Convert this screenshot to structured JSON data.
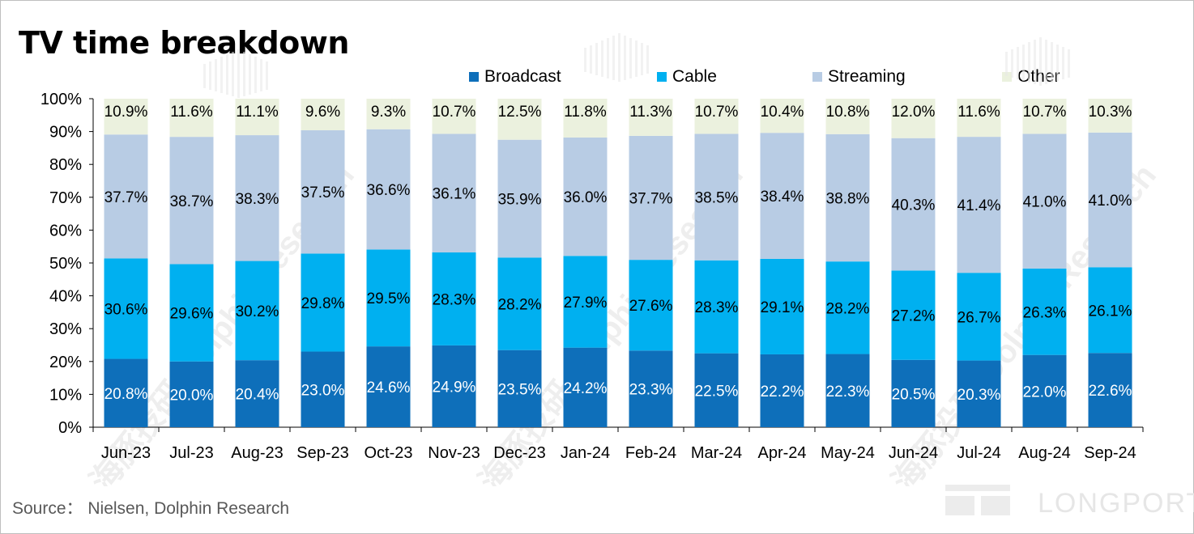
{
  "title": "TV time breakdown",
  "source": "Source：  Nielsen,  Dolphin Research",
  "watermark": {
    "brand": "LONGPORT",
    "text": "海豚投研 DolphinResearch"
  },
  "colors": {
    "Broadcast": "#0e6fba",
    "Cable": "#00b0f0",
    "Streaming": "#b8cce4",
    "Other": "#ebf1de",
    "axis": "#000000",
    "watermark": "#e8e8e8"
  },
  "chart_data": {
    "type": "bar",
    "stacked": true,
    "percent": true,
    "categories": [
      "Jun-23",
      "Jul-23",
      "Aug-23",
      "Sep-23",
      "Oct-23",
      "Nov-23",
      "Dec-23",
      "Jan-24",
      "Feb-24",
      "Mar-24",
      "Apr-24",
      "May-24",
      "Jun-24",
      "Jul-24",
      "Aug-24",
      "Sep-24"
    ],
    "series": [
      {
        "name": "Broadcast",
        "values": [
          20.8,
          20.0,
          20.4,
          23.0,
          24.6,
          24.9,
          23.5,
          24.2,
          23.3,
          22.5,
          22.2,
          22.3,
          20.5,
          20.3,
          22.0,
          22.6
        ]
      },
      {
        "name": "Cable",
        "values": [
          30.6,
          29.6,
          30.2,
          29.8,
          29.5,
          28.3,
          28.2,
          27.9,
          27.6,
          28.3,
          29.1,
          28.2,
          27.2,
          26.7,
          26.3,
          26.1
        ]
      },
      {
        "name": "Streaming",
        "values": [
          37.7,
          38.7,
          38.3,
          37.5,
          36.6,
          36.1,
          35.9,
          36.0,
          37.7,
          38.5,
          38.4,
          38.8,
          40.3,
          41.4,
          41.0,
          41.0
        ]
      },
      {
        "name": "Other",
        "values": [
          10.9,
          11.6,
          11.1,
          9.6,
          9.3,
          10.7,
          12.5,
          11.8,
          11.3,
          10.7,
          10.4,
          10.8,
          12.0,
          11.6,
          10.7,
          10.3
        ]
      }
    ],
    "y_ticks": [
      "0%",
      "10%",
      "20%",
      "30%",
      "40%",
      "50%",
      "60%",
      "70%",
      "80%",
      "90%",
      "100%"
    ],
    "ylim": [
      0,
      100
    ],
    "xlabel": "",
    "ylabel": "",
    "legend_position": "top",
    "grid": false,
    "data_labels": true
  }
}
